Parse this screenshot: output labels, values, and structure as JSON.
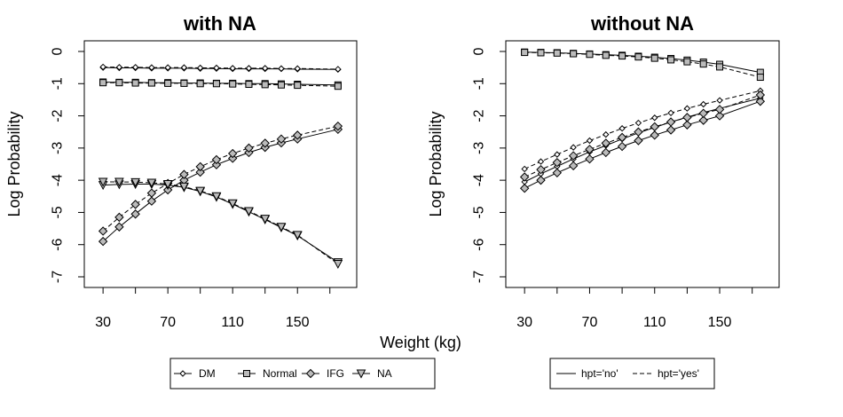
{
  "chart_data": [
    {
      "type": "line",
      "title": "with NA",
      "xlabel": "Weight (kg)",
      "ylabel": "Log Probability",
      "xlim": [
        25,
        180
      ],
      "ylim": [
        -7,
        0
      ],
      "xticks": [
        30,
        70,
        110,
        150
      ],
      "yticks": [
        0,
        -1,
        -2,
        -3,
        -4,
        -5,
        -6,
        -7
      ],
      "x": [
        30,
        40,
        50,
        60,
        70,
        80,
        90,
        100,
        110,
        120,
        130,
        140,
        150,
        175
      ],
      "series": [
        {
          "name": "DM",
          "group": "hpt='no'",
          "values": [
            -0.5,
            -0.51,
            -0.51,
            -0.52,
            -0.52,
            -0.52,
            -0.53,
            -0.53,
            -0.54,
            -0.54,
            -0.54,
            -0.54,
            -0.55,
            -0.56
          ]
        },
        {
          "name": "DM",
          "group": "hpt='yes'",
          "values": [
            -0.48,
            -0.49,
            -0.49,
            -0.5,
            -0.5,
            -0.5,
            -0.51,
            -0.51,
            -0.52,
            -0.52,
            -0.52,
            -0.53,
            -0.53,
            -0.55
          ]
        },
        {
          "name": "Normal",
          "group": "hpt='no'",
          "values": [
            -0.95,
            -0.96,
            -0.96,
            -0.97,
            -0.97,
            -0.98,
            -0.98,
            -0.99,
            -0.99,
            -1.0,
            -1.0,
            -1.01,
            -1.02,
            -1.04
          ]
        },
        {
          "name": "Normal",
          "group": "hpt='yes'",
          "values": [
            -0.97,
            -0.97,
            -0.98,
            -0.98,
            -0.99,
            -0.99,
            -1.0,
            -1.0,
            -1.01,
            -1.02,
            -1.03,
            -1.04,
            -1.05,
            -1.08
          ]
        },
        {
          "name": "IFG",
          "group": "hpt='no'",
          "values": [
            -5.9,
            -5.45,
            -5.05,
            -4.65,
            -4.3,
            -4.0,
            -3.75,
            -3.52,
            -3.32,
            -3.14,
            -2.98,
            -2.84,
            -2.72,
            -2.42
          ]
        },
        {
          "name": "IFG",
          "group": "hpt='yes'",
          "values": [
            -5.58,
            -5.15,
            -4.75,
            -4.4,
            -4.1,
            -3.82,
            -3.58,
            -3.36,
            -3.17,
            -3.0,
            -2.85,
            -2.72,
            -2.6,
            -2.32
          ]
        },
        {
          "name": "NA",
          "group": "hpt='no'",
          "values": [
            -4.15,
            -4.13,
            -4.12,
            -4.12,
            -4.15,
            -4.22,
            -4.35,
            -4.52,
            -4.74,
            -4.98,
            -5.22,
            -5.47,
            -5.72,
            -6.55
          ]
        },
        {
          "name": "NA",
          "group": "hpt='yes'",
          "values": [
            -4.05,
            -4.05,
            -4.06,
            -4.08,
            -4.12,
            -4.2,
            -4.33,
            -4.5,
            -4.72,
            -4.96,
            -5.2,
            -5.45,
            -5.7,
            -6.6
          ]
        }
      ]
    },
    {
      "type": "line",
      "title": "without NA",
      "xlabel": "Weight (kg)",
      "ylabel": "Log Probability",
      "xlim": [
        25,
        180
      ],
      "ylim": [
        -7,
        0
      ],
      "xticks": [
        30,
        70,
        110,
        150
      ],
      "yticks": [
        0,
        -1,
        -2,
        -3,
        -4,
        -5,
        -6,
        -7
      ],
      "x": [
        30,
        40,
        50,
        60,
        70,
        80,
        90,
        100,
        110,
        120,
        130,
        140,
        150,
        175
      ],
      "series": [
        {
          "name": "Normal",
          "group": "hpt='no'",
          "values": [
            -0.02,
            -0.03,
            -0.04,
            -0.06,
            -0.08,
            -0.1,
            -0.12,
            -0.15,
            -0.18,
            -0.22,
            -0.27,
            -0.33,
            -0.4,
            -0.65
          ]
        },
        {
          "name": "Normal",
          "group": "hpt='yes'",
          "values": [
            -0.03,
            -0.04,
            -0.05,
            -0.07,
            -0.09,
            -0.12,
            -0.14,
            -0.17,
            -0.21,
            -0.26,
            -0.32,
            -0.39,
            -0.48,
            -0.8
          ]
        },
        {
          "name": "DM",
          "group": "hpt='no'",
          "values": [
            -4.05,
            -3.8,
            -3.57,
            -3.34,
            -3.12,
            -2.92,
            -2.72,
            -2.53,
            -2.36,
            -2.19,
            -2.04,
            -1.9,
            -1.77,
            -1.45
          ]
        },
        {
          "name": "DM",
          "group": "hpt='yes'",
          "values": [
            -3.65,
            -3.42,
            -3.2,
            -2.98,
            -2.77,
            -2.58,
            -2.39,
            -2.22,
            -2.06,
            -1.91,
            -1.77,
            -1.64,
            -1.52,
            -1.22
          ]
        },
        {
          "name": "IFG",
          "group": "hpt='no'",
          "values": [
            -4.25,
            -4.0,
            -3.77,
            -3.55,
            -3.34,
            -3.14,
            -2.95,
            -2.77,
            -2.6,
            -2.44,
            -2.28,
            -2.14,
            -2.0,
            -1.55
          ]
        },
        {
          "name": "IFG",
          "group": "hpt='yes'",
          "values": [
            -3.9,
            -3.67,
            -3.45,
            -3.24,
            -3.04,
            -2.85,
            -2.67,
            -2.5,
            -2.34,
            -2.19,
            -2.05,
            -1.92,
            -1.8,
            -1.35
          ]
        }
      ]
    }
  ],
  "legend_marker": {
    "items": [
      {
        "label": "DM",
        "marker": "diamond-small"
      },
      {
        "label": "Normal",
        "marker": "square"
      },
      {
        "label": "IFG",
        "marker": "diamond"
      },
      {
        "label": "NA",
        "marker": "triangle-down"
      }
    ]
  },
  "legend_line": {
    "items": [
      {
        "label": "hpt='no'",
        "dash": "solid"
      },
      {
        "label": "hpt='yes'",
        "dash": "dashed"
      }
    ]
  },
  "colors": {
    "fill": "#bbbbbb",
    "stroke": "#000000"
  }
}
